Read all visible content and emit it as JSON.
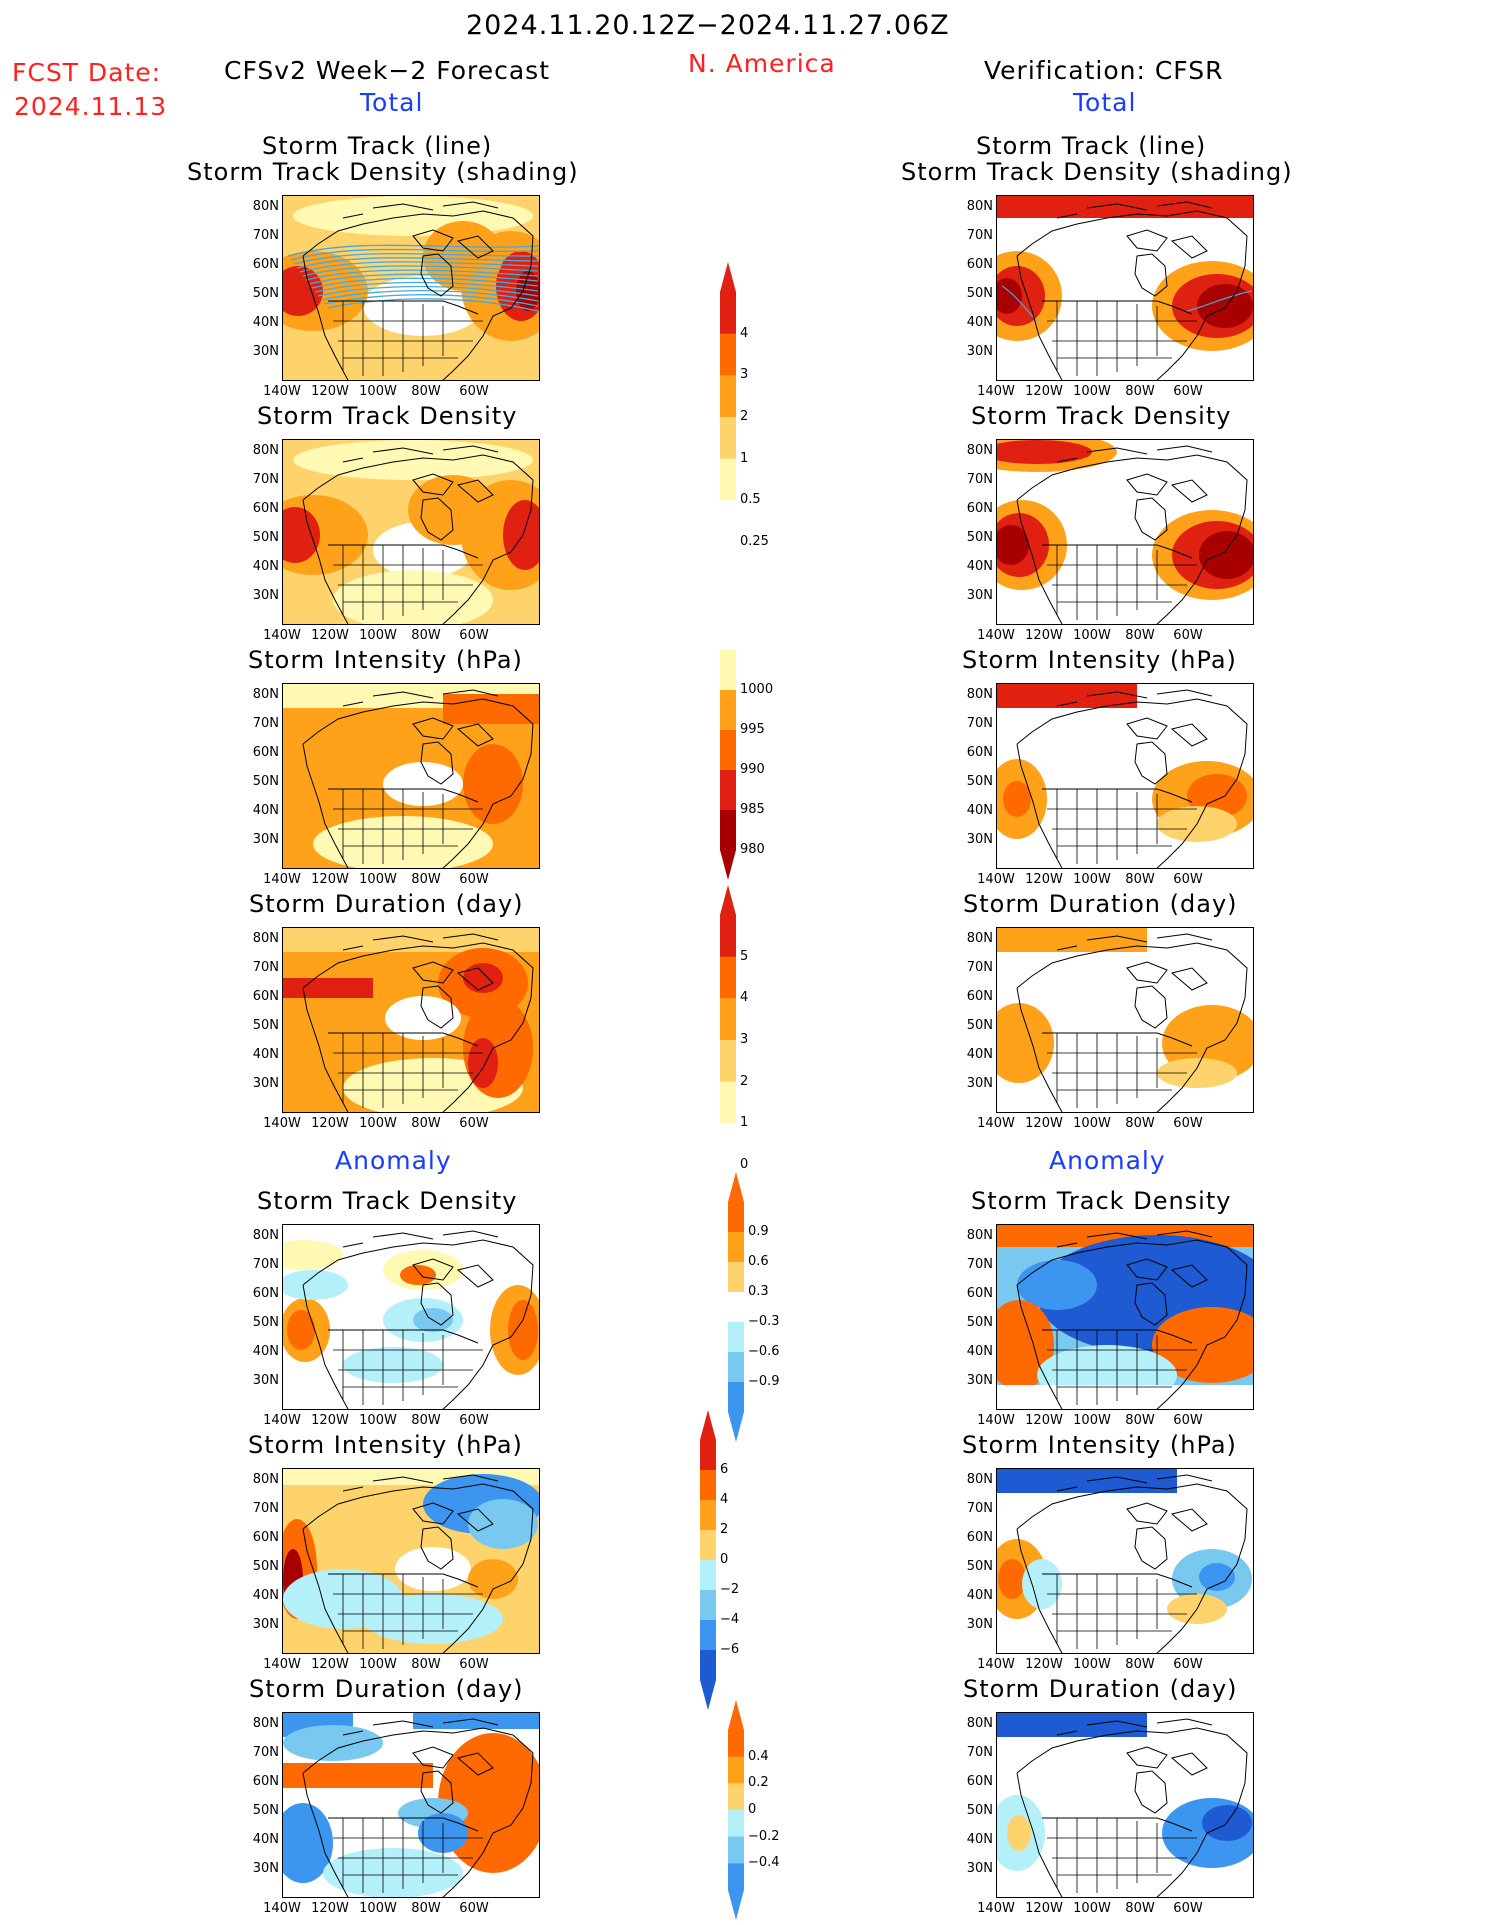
{
  "header": {
    "date_range": "2024.11.20.12Z−2024.11.27.06Z",
    "fcst_label": "FCST Date:",
    "fcst_date": "2024.11.13",
    "left_title": "CFSv2 Week−2 Forecast",
    "region": "N. America",
    "right_title": "Verification: CFSR",
    "total_left": "Total",
    "total_right": "Total",
    "anomaly_left": "Anomaly",
    "anomaly_right": "Anomaly"
  },
  "panel_titles": {
    "track_line": "Storm Track (line)",
    "track_shading": "Storm Track Density (shading)",
    "density": "Storm Track Density",
    "intensity": "Storm Intensity (hPa)",
    "duration": "Storm Duration (day)"
  },
  "axes": {
    "lat_labels": [
      "80N",
      "70N",
      "60N",
      "50N",
      "40N",
      "30N"
    ],
    "lon_labels": [
      "140W",
      "120W",
      "100W",
      "80W",
      "60W"
    ]
  },
  "colorbars": {
    "density_total": [
      "4",
      "3",
      "2",
      "1",
      "0.5",
      "0.25"
    ],
    "intensity_total": [
      "1000",
      "995",
      "990",
      "985",
      "980"
    ],
    "duration_total": [
      "5",
      "4",
      "3",
      "2",
      "1",
      "0"
    ],
    "density_anom": [
      "0.9",
      "0.6",
      "0.3",
      "−0.3",
      "−0.6",
      "−0.9"
    ],
    "intensity_anom": [
      "6",
      "4",
      "2",
      "0",
      "−2",
      "−4",
      "−6"
    ],
    "duration_anom": [
      "0.4",
      "0.2",
      "0",
      "−0.2",
      "−0.4"
    ]
  },
  "colors": {
    "pale_yellow": "#fff9b4",
    "light_orange": "#ffd36b",
    "orange": "#ffa21a",
    "dark_orange": "#ff6a00",
    "red": "#e02010",
    "dark_red": "#a80000",
    "light_blue": "#b4f0fa",
    "mid_blue": "#78c8f0",
    "blue": "#3c96f0",
    "dark_blue": "#1e5ad2",
    "track_line": "#4aa8d8"
  }
}
